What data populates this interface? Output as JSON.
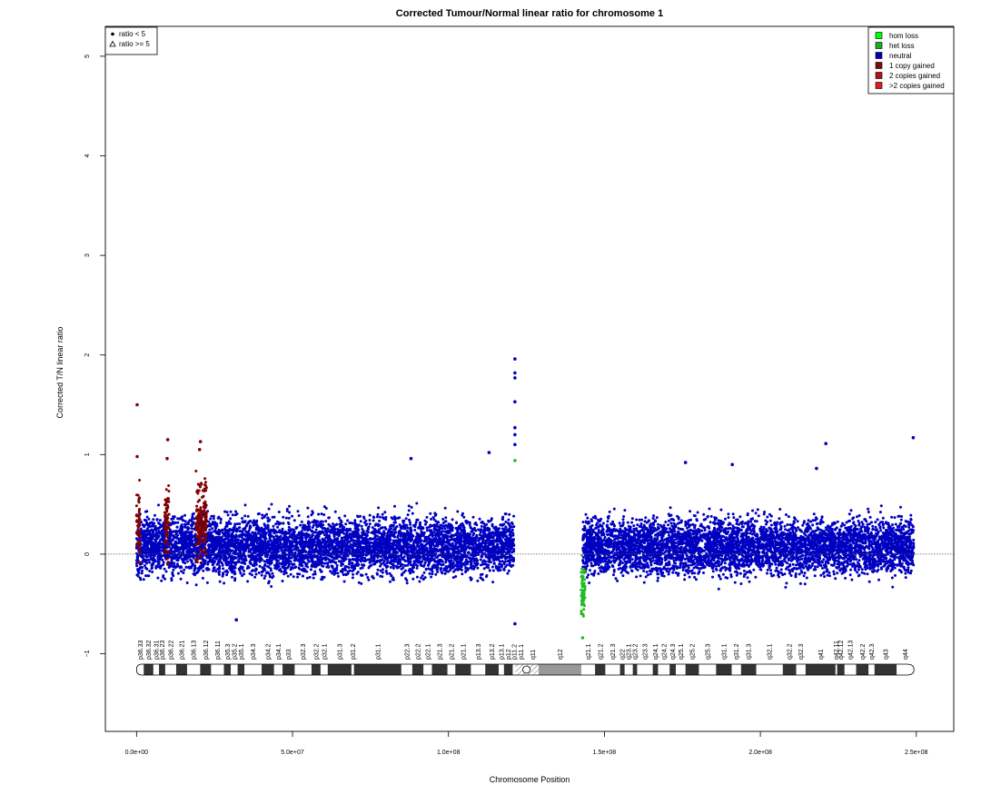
{
  "chart_data": {
    "type": "scatter",
    "title": "Corrected Tumour/Normal linear ratio for chromosome  1",
    "xlabel": "Chromosome Position",
    "ylabel": "Corrected T/N linear ratio",
    "xlim": [
      -10000000,
      262000000
    ],
    "ylim": [
      -1.78,
      5.3
    ],
    "x_ticks": [
      0,
      50000000,
      100000000,
      150000000,
      200000000,
      250000000
    ],
    "x_tick_labels": [
      "0.0e+00",
      "5.0e+07",
      "1.0e+08",
      "1.5e+08",
      "2.0e+08",
      "2.5e+08"
    ],
    "y_ticks": [
      -1,
      0,
      1,
      2,
      3,
      4,
      5
    ],
    "y_tick_labels": [
      "−1",
      "0",
      "1",
      "2",
      "3",
      "4",
      "5"
    ],
    "reference_line": 0,
    "shape_legend": {
      "placement": "top-left",
      "items": [
        {
          "symbol": "filled-circle",
          "label": "ratio < 5"
        },
        {
          "symbol": "open-triangle",
          "label": "ratio >= 5"
        }
      ]
    },
    "color_legend": {
      "placement": "top-right",
      "items": [
        {
          "label": "hom loss",
          "color": "#00ff00"
        },
        {
          "label": "het loss",
          "color": "#1fa91f"
        },
        {
          "label": "neutral",
          "color": "#0000b0"
        },
        {
          "label": "1 copy gained",
          "color": "#7a0c0c"
        },
        {
          "label": "2 copies gained",
          "color": "#b31010"
        },
        {
          "label": ">2 copies gained",
          "color": "#e01c1c"
        }
      ]
    },
    "colors": {
      "neutral": "#0000c0",
      "gain": "#800000",
      "het_loss": "#22bb22",
      "band_dark": "#333333",
      "band_gap": "#999999",
      "reference_line": "#555555"
    },
    "series": [
      {
        "name": "neutral",
        "segments": [
          {
            "x": [
              0,
              121000000
            ],
            "y_mean": 0.08,
            "y_spread": 0.28
          },
          {
            "x": [
              143000000,
              249200000
            ],
            "y_mean": 0.08,
            "y_spread": 0.27
          }
        ],
        "outliers": [
          {
            "x": 113000000,
            "y": 1.02
          },
          {
            "x": 88000000,
            "y": 0.96
          },
          {
            "x": 221000000,
            "y": 1.11
          },
          {
            "x": 249000000,
            "y": 1.17
          },
          {
            "x": 176000000,
            "y": 0.92
          },
          {
            "x": 191000000,
            "y": 0.9
          },
          {
            "x": 218000000,
            "y": 0.86
          },
          {
            "x": 32000000,
            "y": -0.66
          },
          {
            "x": 121300000,
            "y": 1.96
          },
          {
            "x": 121300000,
            "y": 1.82
          },
          {
            "x": 121300000,
            "y": 1.77
          },
          {
            "x": 121300000,
            "y": 1.53
          },
          {
            "x": 121300000,
            "y": 1.27
          },
          {
            "x": 121300000,
            "y": 1.2
          },
          {
            "x": 121300000,
            "y": 1.1
          },
          {
            "x": 121300000,
            "y": -0.7
          }
        ]
      },
      {
        "name": "gain",
        "segments": [
          {
            "x": [
              0,
              1200000
            ],
            "y_mean": 0.28,
            "y_spread": 0.32
          },
          {
            "x": [
              9000000,
              10500000
            ],
            "y_mean": 0.32,
            "y_spread": 0.33
          },
          {
            "x": [
              19000000,
              22500000
            ],
            "y_mean": 0.35,
            "y_spread": 0.38
          }
        ],
        "outliers": [
          {
            "x": 200000,
            "y": 1.5
          },
          {
            "x": 200000,
            "y": 0.98
          },
          {
            "x": 10000000,
            "y": 1.15
          },
          {
            "x": 9800000,
            "y": 0.96
          },
          {
            "x": 20500000,
            "y": 1.13
          },
          {
            "x": 20200000,
            "y": 1.05
          }
        ]
      },
      {
        "name": "het loss",
        "segments": [
          {
            "x": [
              142500000,
              143800000
            ],
            "y_mean": -0.35,
            "y_spread": 0.25
          }
        ],
        "outliers": [
          {
            "x": 143000000,
            "y": -0.84
          },
          {
            "x": 121300000,
            "y": 0.94
          }
        ]
      }
    ],
    "ideogram": {
      "length": 249250621,
      "centromere": 125000000,
      "bands": [
        {
          "name": "p36.33",
          "start": 0,
          "end": 2300000,
          "type": "gneg"
        },
        {
          "name": "p36.32",
          "start": 2300000,
          "end": 5400000,
          "type": "gpos"
        },
        {
          "name": "p36.31",
          "start": 5400000,
          "end": 7200000,
          "type": "gneg"
        },
        {
          "name": "p36.23",
          "start": 7200000,
          "end": 9200000,
          "type": "gpos"
        },
        {
          "name": "p36.22",
          "start": 9200000,
          "end": 12700000,
          "type": "gneg"
        },
        {
          "name": "p36.21",
          "start": 12700000,
          "end": 16200000,
          "type": "gpos"
        },
        {
          "name": "p36.13",
          "start": 16200000,
          "end": 20400000,
          "type": "gneg"
        },
        {
          "name": "p36.12",
          "start": 20400000,
          "end": 23900000,
          "type": "gpos"
        },
        {
          "name": "p36.11",
          "start": 23900000,
          "end": 28000000,
          "type": "gneg"
        },
        {
          "name": "p35.3",
          "start": 28000000,
          "end": 30200000,
          "type": "gpos"
        },
        {
          "name": "p35.2",
          "start": 30200000,
          "end": 32400000,
          "type": "gneg"
        },
        {
          "name": "p35.1",
          "start": 32400000,
          "end": 34600000,
          "type": "gpos"
        },
        {
          "name": "p34.3",
          "start": 34600000,
          "end": 40100000,
          "type": "gneg"
        },
        {
          "name": "p34.2",
          "start": 40100000,
          "end": 44100000,
          "type": "gpos"
        },
        {
          "name": "p34.1",
          "start": 44100000,
          "end": 46800000,
          "type": "gneg"
        },
        {
          "name": "p33",
          "start": 46800000,
          "end": 50700000,
          "type": "gpos"
        },
        {
          "name": "p32.3",
          "start": 50700000,
          "end": 56100000,
          "type": "gneg"
        },
        {
          "name": "p32.2",
          "start": 56100000,
          "end": 59000000,
          "type": "gpos"
        },
        {
          "name": "p32.1",
          "start": 59000000,
          "end": 61300000,
          "type": "gneg"
        },
        {
          "name": "p31.3",
          "start": 61300000,
          "end": 68900000,
          "type": "gpos"
        },
        {
          "name": "p31.2",
          "start": 68900000,
          "end": 69700000,
          "type": "gneg"
        },
        {
          "name": "p31.1",
          "start": 69700000,
          "end": 84900000,
          "type": "gpos"
        },
        {
          "name": "p22.3",
          "start": 84900000,
          "end": 88400000,
          "type": "gneg"
        },
        {
          "name": "p22.2",
          "start": 88400000,
          "end": 92000000,
          "type": "gpos"
        },
        {
          "name": "p22.1",
          "start": 92000000,
          "end": 94700000,
          "type": "gneg"
        },
        {
          "name": "p21.3",
          "start": 94700000,
          "end": 99700000,
          "type": "gpos"
        },
        {
          "name": "p21.2",
          "start": 99700000,
          "end": 102200000,
          "type": "gneg"
        },
        {
          "name": "p21.1",
          "start": 102200000,
          "end": 107200000,
          "type": "gpos"
        },
        {
          "name": "p13.3",
          "start": 107200000,
          "end": 111800000,
          "type": "gneg"
        },
        {
          "name": "p13.2",
          "start": 111800000,
          "end": 116100000,
          "type": "gpos"
        },
        {
          "name": "p13.1",
          "start": 116100000,
          "end": 117800000,
          "type": "gneg"
        },
        {
          "name": "p12",
          "start": 117800000,
          "end": 120600000,
          "type": "gpos"
        },
        {
          "name": "p11.2",
          "start": 120600000,
          "end": 121500000,
          "type": "gneg"
        },
        {
          "name": "p11.1",
          "start": 121500000,
          "end": 125000000,
          "type": "acen"
        },
        {
          "name": "q11",
          "start": 125000000,
          "end": 128900000,
          "type": "acen"
        },
        {
          "name": "q12",
          "start": 128900000,
          "end": 142600000,
          "type": "gvar"
        },
        {
          "name": "q21.1",
          "start": 142600000,
          "end": 147000000,
          "type": "gneg"
        },
        {
          "name": "q21.2",
          "start": 147000000,
          "end": 150300000,
          "type": "gpos"
        },
        {
          "name": "q21.3",
          "start": 150300000,
          "end": 155000000,
          "type": "gneg"
        },
        {
          "name": "q22",
          "start": 155000000,
          "end": 156500000,
          "type": "gpos"
        },
        {
          "name": "q23.1",
          "start": 156500000,
          "end": 159100000,
          "type": "gneg"
        },
        {
          "name": "q23.2",
          "start": 159100000,
          "end": 160500000,
          "type": "gpos"
        },
        {
          "name": "q23.3",
          "start": 160500000,
          "end": 165500000,
          "type": "gneg"
        },
        {
          "name": "q24.1",
          "start": 165500000,
          "end": 167200000,
          "type": "gpos"
        },
        {
          "name": "q24.2",
          "start": 167200000,
          "end": 170900000,
          "type": "gneg"
        },
        {
          "name": "q24.3",
          "start": 170900000,
          "end": 172900000,
          "type": "gpos"
        },
        {
          "name": "q25.1",
          "start": 172900000,
          "end": 176000000,
          "type": "gneg"
        },
        {
          "name": "q25.2",
          "start": 176000000,
          "end": 180300000,
          "type": "gpos"
        },
        {
          "name": "q25.3",
          "start": 180300000,
          "end": 185800000,
          "type": "gneg"
        },
        {
          "name": "q31.1",
          "start": 185800000,
          "end": 190800000,
          "type": "gpos"
        },
        {
          "name": "q31.2",
          "start": 190800000,
          "end": 193800000,
          "type": "gneg"
        },
        {
          "name": "q31.3",
          "start": 193800000,
          "end": 198700000,
          "type": "gpos"
        },
        {
          "name": "q32.1",
          "start": 198700000,
          "end": 207200000,
          "type": "gneg"
        },
        {
          "name": "q32.2",
          "start": 207200000,
          "end": 211500000,
          "type": "gpos"
        },
        {
          "name": "q32.3",
          "start": 211500000,
          "end": 214500000,
          "type": "gneg"
        },
        {
          "name": "q41",
          "start": 214500000,
          "end": 224100000,
          "type": "gpos"
        },
        {
          "name": "q42.11",
          "start": 224100000,
          "end": 224600000,
          "type": "gneg"
        },
        {
          "name": "q42.12",
          "start": 224600000,
          "end": 227000000,
          "type": "gpos"
        },
        {
          "name": "q42.13",
          "start": 227000000,
          "end": 230700000,
          "type": "gneg"
        },
        {
          "name": "q42.2",
          "start": 230700000,
          "end": 234700000,
          "type": "gpos"
        },
        {
          "name": "q42.3",
          "start": 234700000,
          "end": 236600000,
          "type": "gneg"
        },
        {
          "name": "q43",
          "start": 236600000,
          "end": 243700000,
          "type": "gpos"
        },
        {
          "name": "q44",
          "start": 243700000,
          "end": 249250621,
          "type": "gneg"
        }
      ]
    }
  }
}
